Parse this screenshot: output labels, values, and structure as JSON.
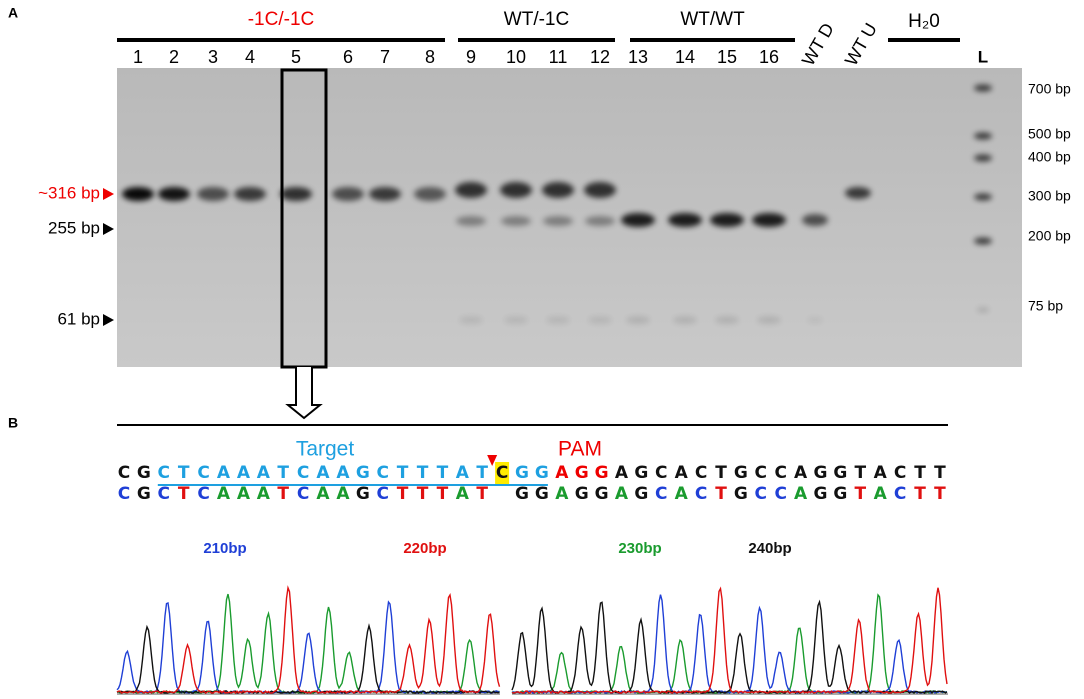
{
  "panel_a": {
    "label": "A",
    "groups": [
      "-1C/-1C",
      "WT/-1C",
      "WT/WT",
      "H₂0"
    ],
    "lanes": [
      "1",
      "2",
      "3",
      "4",
      "5",
      "6",
      "7",
      "8",
      "9",
      "10",
      "11",
      "12",
      "13",
      "14",
      "15",
      "16",
      "WT D",
      "WT U",
      "L"
    ],
    "size_markers": [
      "~316 bp",
      "255 bp",
      "61 bp"
    ],
    "ladder_labels": [
      "700 bp",
      "500 bp",
      "400 bp",
      "300 bp",
      "200 bp",
      "75 bp"
    ]
  },
  "panel_b": {
    "label": "B",
    "target": "Target",
    "pam": "PAM",
    "reference": "CGCTCAAATCAAGCTTTATCGGAGGAGCACTGCCAGGTACTT",
    "read": "CGCTCAAATCAAGCTTTAT GGAGGAGCACTGCCAGGTACTT",
    "positions": [
      "210bp",
      "220bp",
      "230bp",
      "240bp"
    ]
  }
}
